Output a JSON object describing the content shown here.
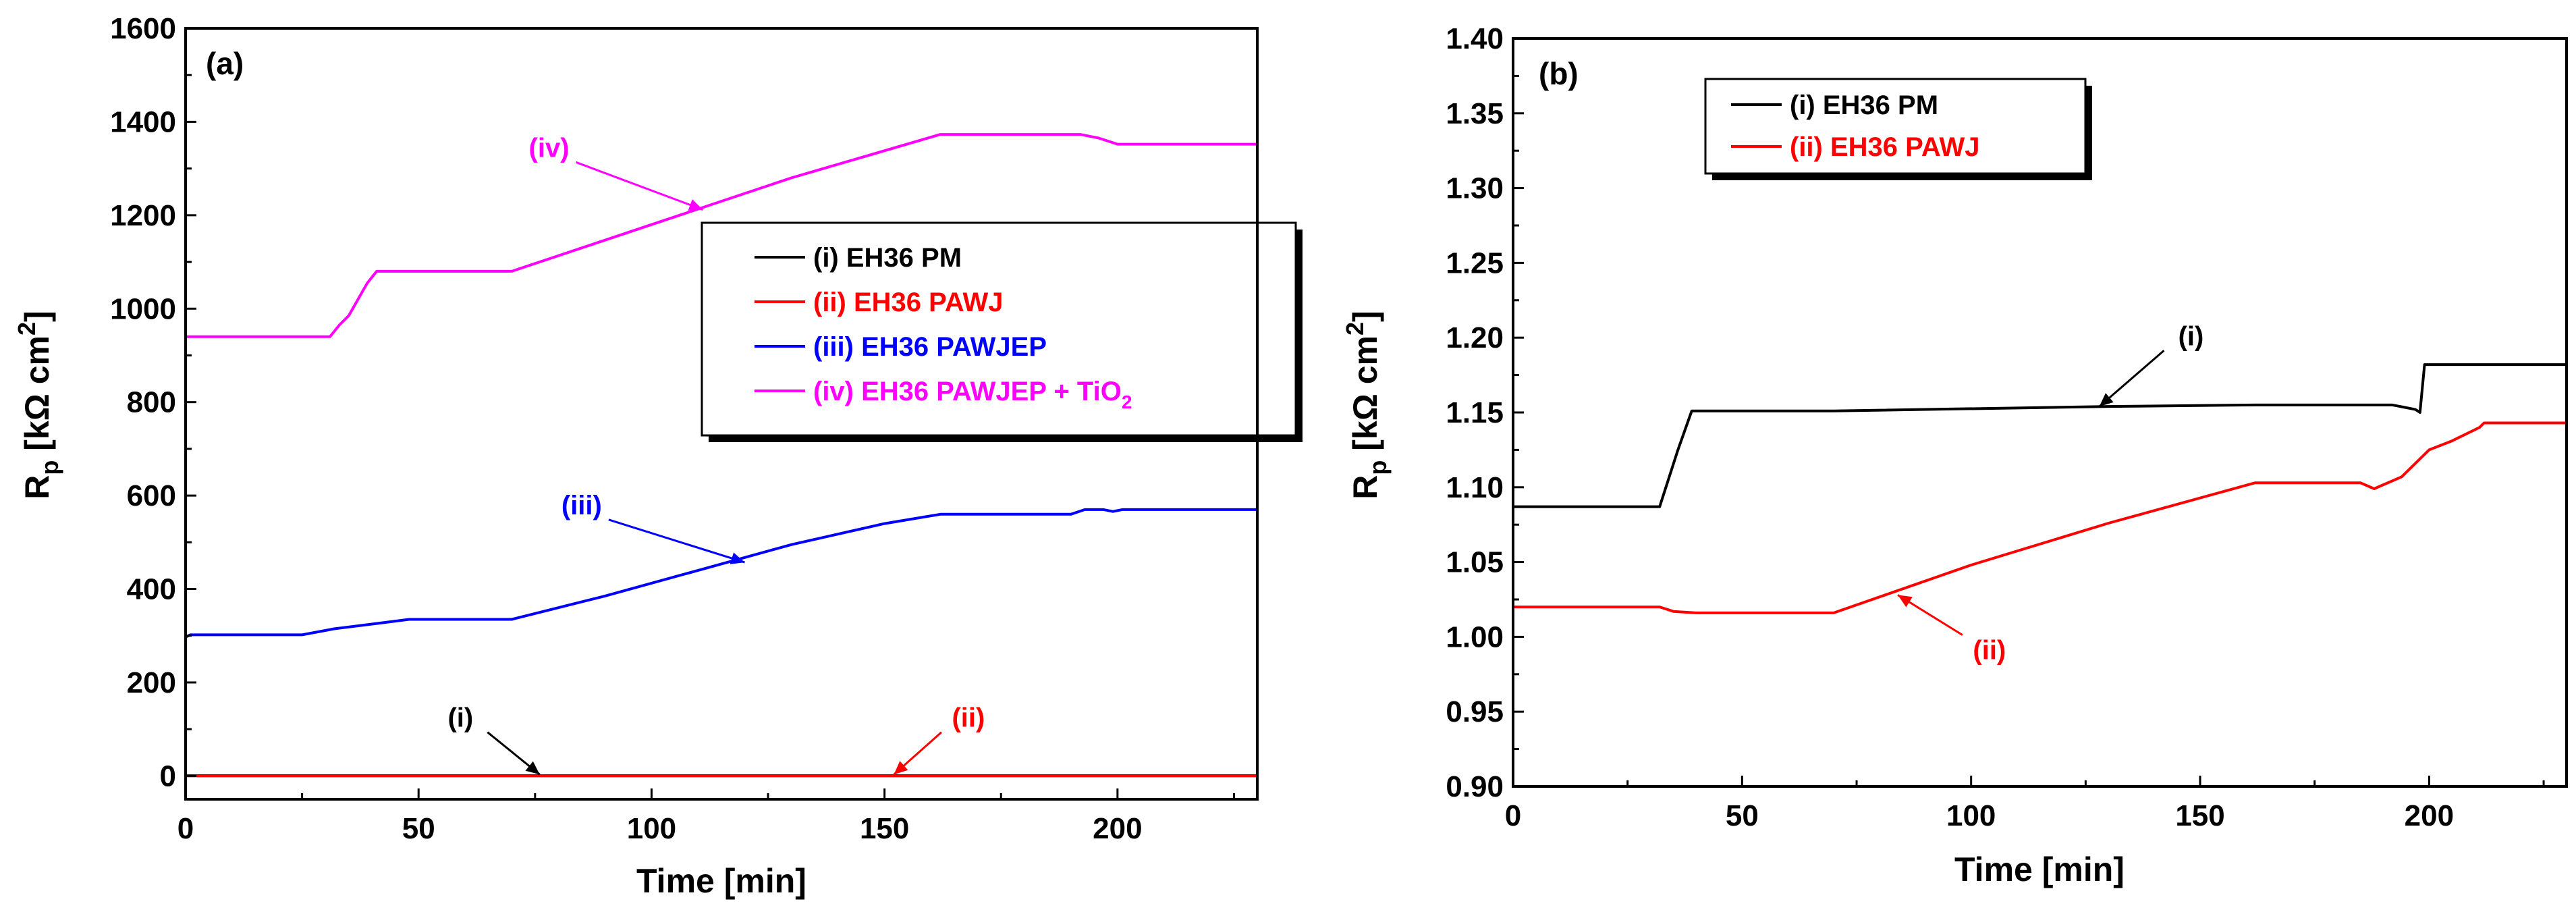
{
  "chart_data": [
    {
      "type": "line",
      "panel": "(a)",
      "xlabel": "Time [min]",
      "ylabel": "R_p [kΩ cm^2]",
      "xlim": [
        0,
        230
      ],
      "ylim": [
        -50,
        1600
      ],
      "xticks": [
        0,
        50,
        100,
        150,
        200
      ],
      "yticks": [
        0,
        200,
        400,
        600,
        800,
        1000,
        1200,
        1400,
        1600
      ],
      "legend_placement": "center-right",
      "series": [
        {
          "name": "(i) EH36 PM",
          "legend_label": "(i) EH36 PM",
          "color": "#000000",
          "x": [
            0,
            230
          ],
          "y": [
            0.5,
            0.5
          ]
        },
        {
          "name": "(ii) EH36 PAWJ",
          "legend_label": "(ii) EH36 PAWJ",
          "color": "#ff0000",
          "x": [
            0,
            230
          ],
          "y": [
            0,
            0
          ]
        },
        {
          "name": "(iii) EH36 PAWJEP",
          "legend_label": "(iii) EH36 PAWJEP",
          "color": "#0000ff",
          "x": [
            0,
            1,
            25,
            32,
            40,
            48,
            70,
            90,
            110,
            130,
            150,
            162,
            190,
            193,
            197,
            199,
            201,
            230
          ],
          "y": [
            297,
            302,
            302,
            315,
            325,
            335,
            335,
            385,
            440,
            495,
            540,
            560,
            560,
            570,
            570,
            566,
            570,
            570
          ]
        },
        {
          "name": "(iv) EH36 PAWJEP + TiO2",
          "legend_label": "(iv) EH36 PAWJEP + TiO",
          "legend_sub": "2",
          "color": "#ff00ff",
          "x": [
            0,
            31,
            33,
            35,
            37,
            39,
            41,
            45,
            70,
            100,
            130,
            162,
            192,
            196,
            200,
            230
          ],
          "y": [
            940,
            940,
            965,
            985,
            1020,
            1055,
            1080,
            1080,
            1080,
            1180,
            1280,
            1373,
            1373,
            1365,
            1352,
            1352
          ]
        }
      ],
      "annotations": [
        {
          "text": "(iv)",
          "color": "#ff00ff",
          "tx": 78,
          "ty": 1325,
          "ax": 111,
          "ay": 1212
        },
        {
          "text": "(iii)",
          "color": "#0000ff",
          "tx": 85,
          "ty": 560,
          "ax": 120,
          "ay": 457
        },
        {
          "text": "(i)",
          "color": "#000000",
          "tx": 59,
          "ty": 105,
          "ax": 76,
          "ay": 3
        },
        {
          "text": "(ii)",
          "color": "#ff0000",
          "tx": 168,
          "ty": 105,
          "ax": 152,
          "ay": 3
        }
      ]
    },
    {
      "type": "line",
      "panel": "(b)",
      "xlabel": "Time [min]",
      "ylabel": "R_p [kΩ cm^2]",
      "xlim": [
        0,
        230
      ],
      "ylim": [
        0.9,
        1.4
      ],
      "xticks": [
        0,
        50,
        100,
        150,
        200
      ],
      "yticks": [
        0.9,
        0.95,
        1.0,
        1.05,
        1.1,
        1.15,
        1.2,
        1.25,
        1.3,
        1.35,
        1.4
      ],
      "legend_placement": "top-left",
      "series": [
        {
          "name": "(i) EH36 PM",
          "legend_label": "(i) EH36 PM",
          "color": "#000000",
          "x": [
            0,
            32,
            36,
            39,
            70,
            130,
            162,
            192,
            197,
            198,
            199,
            230
          ],
          "y": [
            1.087,
            1.087,
            1.125,
            1.151,
            1.151,
            1.154,
            1.155,
            1.155,
            1.152,
            1.15,
            1.182,
            1.182
          ]
        },
        {
          "name": "(ii) EH36 PAWJ",
          "legend_label": "(ii) EH36 PAWJ",
          "color": "#ff0000",
          "x": [
            0,
            32,
            35,
            40,
            70,
            100,
            130,
            162,
            185,
            188,
            194,
            200,
            205,
            211,
            212,
            230
          ],
          "y": [
            1.02,
            1.02,
            1.017,
            1.016,
            1.016,
            1.048,
            1.076,
            1.103,
            1.103,
            1.099,
            1.107,
            1.125,
            1.131,
            1.14,
            1.143,
            1.143
          ]
        }
      ],
      "annotations": [
        {
          "text": "(i)",
          "color": "#000000",
          "tx": 148,
          "ty": 1.195,
          "ax": 128,
          "ay": 1.154
        },
        {
          "text": "(ii)",
          "color": "#ff0000",
          "tx": 104,
          "ty": 0.985,
          "ax": 84,
          "ay": 1.028
        }
      ]
    }
  ]
}
